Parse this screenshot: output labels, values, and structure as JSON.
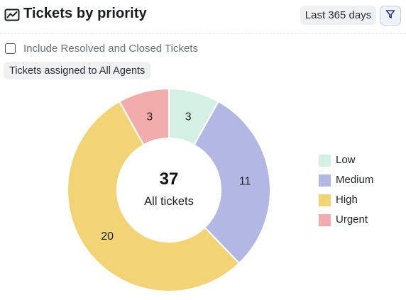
{
  "header": {
    "title": "Tickets by priority",
    "range_label": "Last 365 days",
    "icon": "chart-trend-icon",
    "filter_icon": "filter-icon"
  },
  "options": {
    "include_resolved_label": "Include Resolved and Closed Tickets",
    "include_resolved_checked": false,
    "assigned_chip": "Tickets assigned to All Agents"
  },
  "chart_data": {
    "type": "pie",
    "center_total": "37",
    "center_caption": "All tickets",
    "categories": [
      "Low",
      "Medium",
      "High",
      "Urgent"
    ],
    "values": [
      3,
      11,
      20,
      3
    ],
    "colors": [
      "#d4efe3",
      "#b3b7e3",
      "#f2d477",
      "#f3acac"
    ],
    "legend_position": "right"
  }
}
